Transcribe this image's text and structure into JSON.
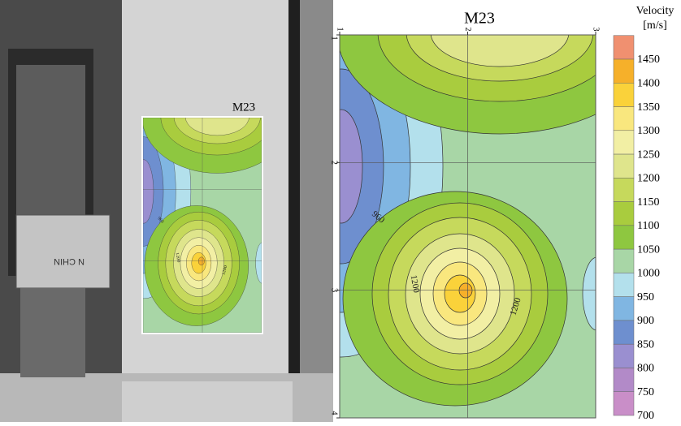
{
  "photo": {
    "box_text": "N CHIN"
  },
  "chart_data": {
    "type": "contour",
    "title": "M23",
    "inset_title": "M23",
    "xlim": [
      1,
      3
    ],
    "ylim": [
      1,
      4
    ],
    "xticks": [
      1,
      2,
      3
    ],
    "yticks": [
      1,
      2,
      3,
      4
    ],
    "grid": true,
    "contour_labels": [
      960,
      1200,
      1200
    ],
    "colorbar": {
      "title": "Velocity",
      "unit": "[m/s]",
      "levels": [
        1450,
        1400,
        1350,
        1300,
        1250,
        1200,
        1150,
        1100,
        1050,
        1000,
        950,
        900,
        850,
        800,
        750,
        700
      ],
      "colors": [
        "#f09070",
        "#f6b02a",
        "#fad23a",
        "#f9e77e",
        "#f2efa4",
        "#dfe58c",
        "#c6d95c",
        "#a9cc3e",
        "#8ec740",
        "#a8d6a6",
        "#b3e0ec",
        "#80b6e2",
        "#6e8fcf",
        "#9a8fd0",
        "#b28ac8",
        "#c98ec8"
      ]
    }
  }
}
